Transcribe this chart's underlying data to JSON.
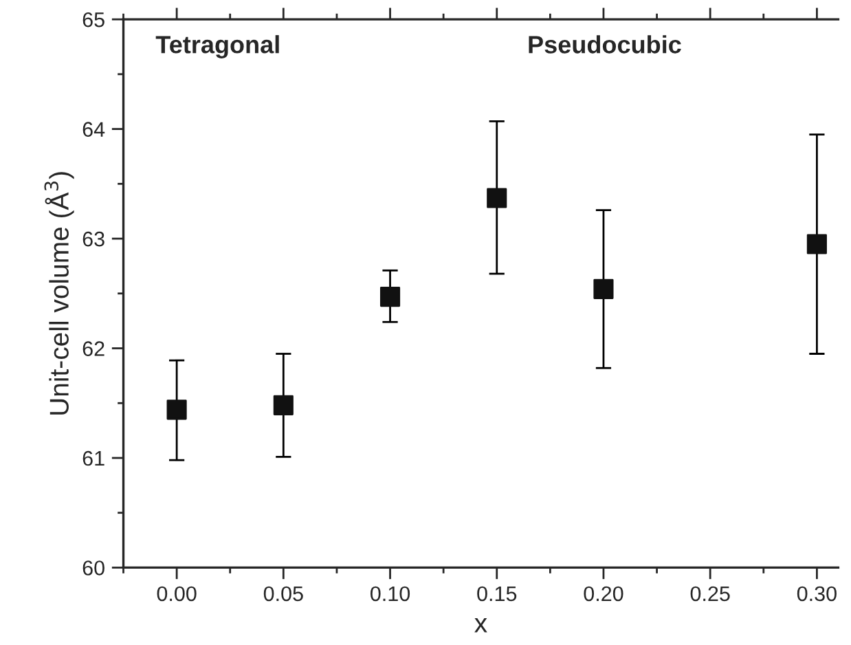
{
  "chart_data": {
    "type": "scatter",
    "xlabel": "x",
    "ylabel": "Unit-cell volume (Å$^{3}$)",
    "x": [
      0.0,
      0.05,
      0.1,
      0.15,
      0.2,
      0.3
    ],
    "series": [
      {
        "color": "#111111",
        "values": [
          61.44,
          61.48,
          62.47,
          63.37,
          62.54,
          62.95
        ],
        "errors": [
          [
            60.98,
            61.89
          ],
          [
            61.01,
            61.95
          ],
          [
            62.24,
            62.71
          ],
          [
            62.68,
            64.07
          ],
          [
            61.82,
            63.26
          ],
          [
            61.95,
            63.95
          ]
        ]
      }
    ],
    "marker": "square",
    "xlim": [
      -0.025,
      0.31
    ],
    "ylim": [
      60,
      65
    ],
    "xticks": [
      {
        "value": 0.0,
        "label": "0.00"
      },
      {
        "value": 0.05,
        "label": "0.05"
      },
      {
        "value": 0.1,
        "label": "0.10"
      },
      {
        "value": 0.15,
        "label": "0.15"
      },
      {
        "value": 0.2,
        "label": "0.20"
      },
      {
        "value": 0.25,
        "label": "0.25"
      },
      {
        "value": 0.3,
        "label": "0.30"
      }
    ],
    "yticks": [
      60,
      61,
      62,
      63,
      64,
      65
    ],
    "annotations": [
      "Tetragonal",
      "Pseudocubic"
    ],
    "grid": false,
    "legend": false
  }
}
